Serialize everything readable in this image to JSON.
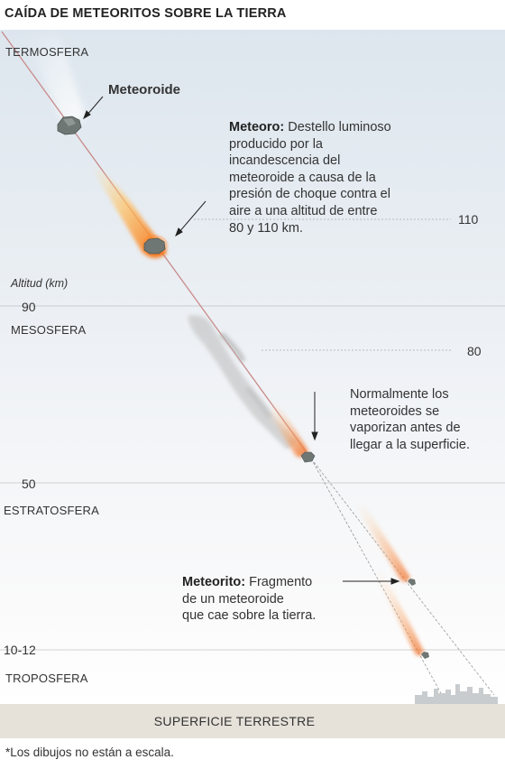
{
  "title": "CAÍDA DE METEORITOS SOBRE LA TIERRA",
  "layers": {
    "termosfera": "TERMOSFERA",
    "mesosfera": "MESOSFERA",
    "estratosfera": "ESTRATOSFERA",
    "troposfera": "TROPOSFERA"
  },
  "altitude": {
    "title": "Altitud (km)",
    "a110": "110",
    "a90": "90",
    "a80": "80",
    "a50": "50",
    "a10_12": "10-12"
  },
  "labels": {
    "meteoroide": "Meteoroide",
    "meteoro_term": "Meteoro:",
    "meteoro_line1": "Destello luminoso",
    "meteoro_line2": "producido por la",
    "meteoro_line3": "incandescencia del",
    "meteoro_line4": "meteoroide a causa de la",
    "meteoro_line5": "presión de choque contra el",
    "meteoro_line6": "aire a una altitud de entre",
    "meteoro_line7": "80 y 110 km.",
    "vapor_line1": "Normalmente los",
    "vapor_line2": "meteoroides se",
    "vapor_line3": "vaporizan antes de",
    "vapor_line4": "llegar a la superficie.",
    "meteorito_term": "Meteorito:",
    "meteorito_line1": "Fragmento",
    "meteorito_line2": "de un meteoroide",
    "meteorito_line3": "que cae sobre la tierra."
  },
  "ground": "SUPERFICIE TERRESTRE",
  "footnote": "*Los dibujos no están a escala.",
  "colors": {
    "trajectory": "#c98a8a",
    "flame": "#f28a2a",
    "ground": "#e6e1d9"
  },
  "icons": [
    "meteoroid-rock-icon",
    "flame-trail-icon",
    "smoke-trail-icon",
    "city-skyline-icon",
    "arrow-icon"
  ]
}
